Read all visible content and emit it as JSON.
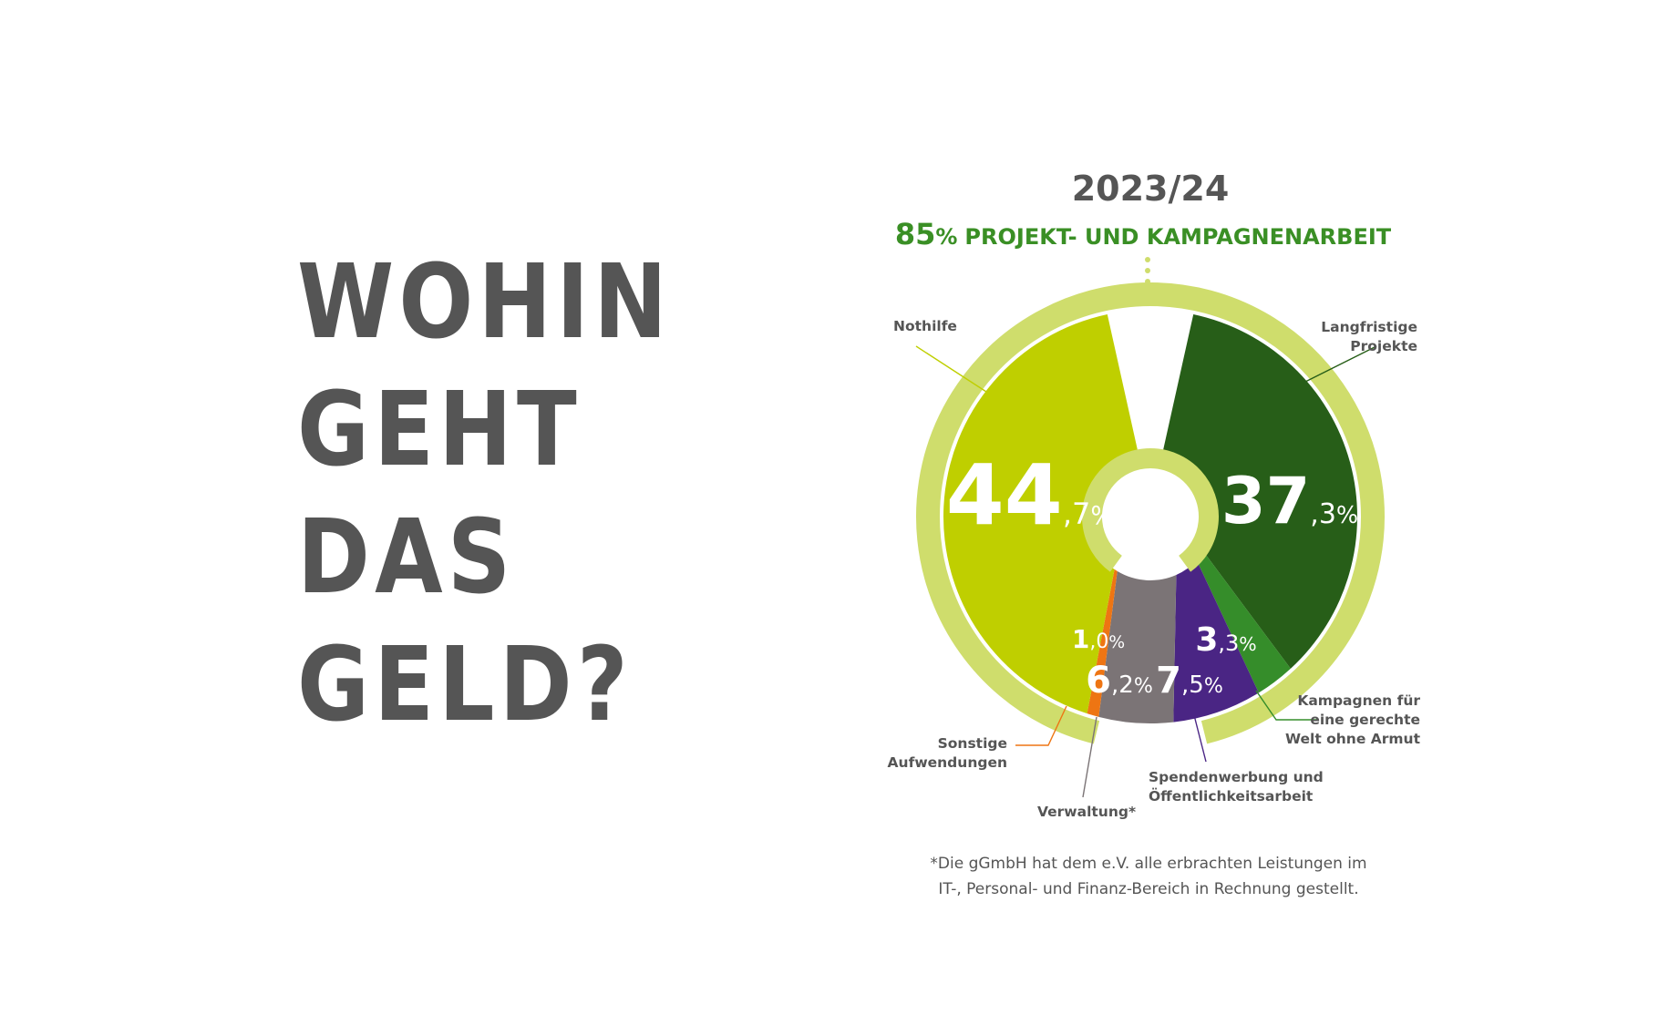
{
  "headline": [
    "WOHIN",
    "GEHT",
    "DAS",
    "GELD?"
  ],
  "chart_data": {
    "type": "pie",
    "title": "2023/24",
    "subtitle": {
      "value": "85",
      "unit": "%",
      "text": "PROJEKT- UND KAMPAGNENARBEIT"
    },
    "slices": [
      {
        "label_lines": [
          "Langfristige",
          "Projekte"
        ],
        "value": 37.3,
        "int": "37",
        "dec": ",3",
        "unit": "%",
        "color": "#275e18"
      },
      {
        "label_lines": [
          "Kampagnen für",
          "eine gerechte",
          "Welt ohne Armut"
        ],
        "value": 3.3,
        "int": "3",
        "dec": ",3",
        "unit": "%",
        "color": "#358d2a"
      },
      {
        "label_lines": [
          "Spendenwerbung und",
          "Öffentlichkeitsarbeit"
        ],
        "value": 7.5,
        "int": "7",
        "dec": ",5",
        "unit": "%",
        "color": "#4a2584"
      },
      {
        "label_lines": [
          "Verwaltung*"
        ],
        "value": 6.2,
        "int": "6",
        "dec": ",2",
        "unit": "%",
        "color": "#7b7476"
      },
      {
        "label_lines": [
          "Sonstige",
          "Aufwendungen"
        ],
        "value": 1.0,
        "int": "1",
        "dec": ",0",
        "unit": "%",
        "color": "#ee7513"
      },
      {
        "label_lines": [
          "Nothilfe"
        ],
        "value": 44.7,
        "int": "44",
        "dec": ",7",
        "unit": "%",
        "color": "#bfcf00"
      }
    ],
    "ring_color": "#cfdd6c"
  },
  "footnote": [
    "*Die gGmbH hat dem e.V. alle erbrachten Leistungen im",
    "IT-, Personal- und Finanz-Bereich in Rechnung gestellt."
  ]
}
